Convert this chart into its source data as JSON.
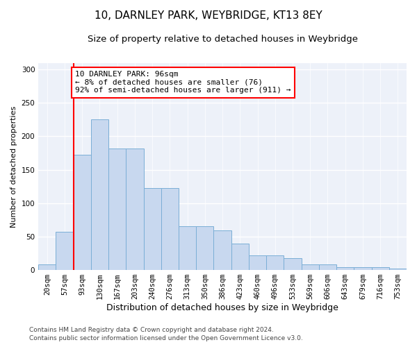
{
  "title1": "10, DARNLEY PARK, WEYBRIDGE, KT13 8EY",
  "title2": "Size of property relative to detached houses in Weybridge",
  "xlabel": "Distribution of detached houses by size in Weybridge",
  "ylabel": "Number of detached properties",
  "bar_color": "#c8d8ef",
  "bar_edge_color": "#7aaed6",
  "categories": [
    "20sqm",
    "57sqm",
    "93sqm",
    "130sqm",
    "167sqm",
    "203sqm",
    "240sqm",
    "276sqm",
    "313sqm",
    "350sqm",
    "386sqm",
    "423sqm",
    "460sqm",
    "496sqm",
    "533sqm",
    "569sqm",
    "606sqm",
    "643sqm",
    "679sqm",
    "716sqm",
    "753sqm"
  ],
  "values": [
    8,
    57,
    172,
    225,
    182,
    182,
    123,
    123,
    65,
    65,
    59,
    40,
    22,
    22,
    18,
    8,
    8,
    4,
    4,
    4,
    2
  ],
  "vline_bin_index": 2,
  "annotation_text": "10 DARNLEY PARK: 96sqm\n← 8% of detached houses are smaller (76)\n92% of semi-detached houses are larger (911) →",
  "annotation_box_color": "white",
  "annotation_box_edge_color": "red",
  "vline_color": "red",
  "ylim": [
    0,
    310
  ],
  "yticks": [
    0,
    50,
    100,
    150,
    200,
    250,
    300
  ],
  "footer1": "Contains HM Land Registry data © Crown copyright and database right 2024.",
  "footer2": "Contains public sector information licensed under the Open Government Licence v3.0.",
  "background_color": "#edf1f9",
  "grid_color": "#ffffff",
  "title1_fontsize": 11,
  "title2_fontsize": 9.5,
  "xlabel_fontsize": 9,
  "ylabel_fontsize": 8,
  "tick_fontsize": 7.5,
  "footer_fontsize": 6.5,
  "annotation_fontsize": 8
}
